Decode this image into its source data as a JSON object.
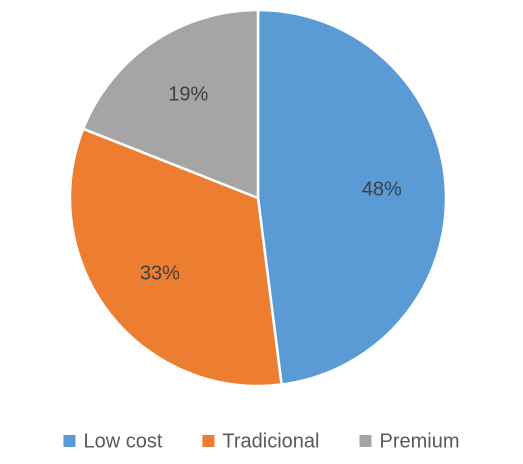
{
  "chart_data": {
    "type": "pie",
    "title": "",
    "slices": [
      {
        "label": "Low cost",
        "value": 48,
        "display": "48%",
        "color": "#5B9BD5"
      },
      {
        "label": "Tradicional",
        "value": 33,
        "display": "33%",
        "color": "#ED7D31"
      },
      {
        "label": "Premium",
        "value": 19,
        "display": "19%",
        "color": "#A5A5A5"
      }
    ],
    "start_angle_deg": 0,
    "direction": "clockwise",
    "legend": "bottom",
    "labels": "inside"
  }
}
